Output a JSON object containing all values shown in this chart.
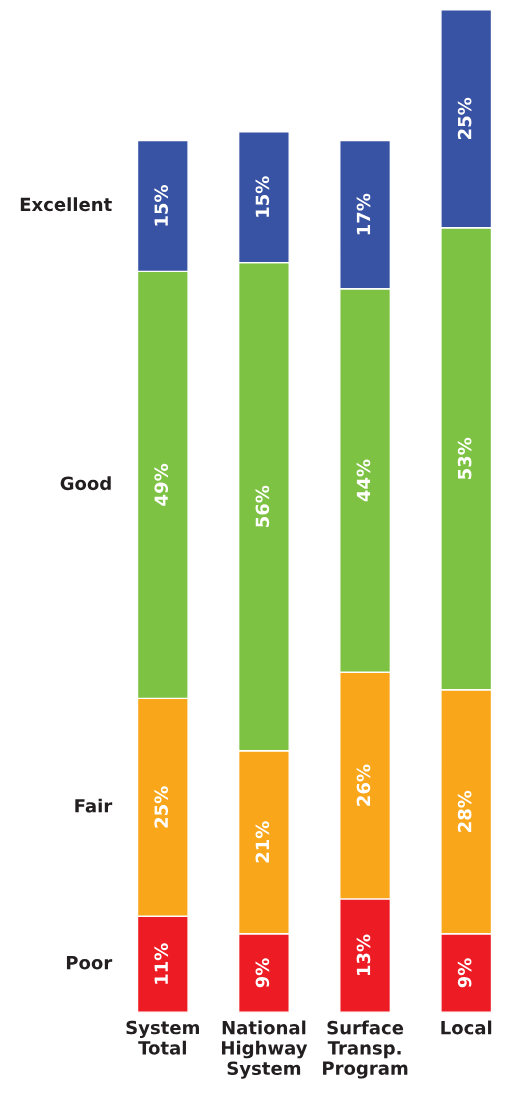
{
  "chart_data": {
    "type": "bar",
    "stacked": true,
    "tick_labels": "x",
    "legend": "left",
    "grid": false,
    "categories": [
      "System\nTotal",
      "National\nHighway\nSystem",
      "Surface\nTransp.\nProgram",
      "Local"
    ],
    "series": [
      {
        "name": "Poor",
        "color": "#ed1c24",
        "values": [
          11,
          9,
          13,
          9
        ],
        "value_labels": [
          "11%",
          "9%",
          "13%",
          "9%"
        ]
      },
      {
        "name": "Fair",
        "color": "#f9a61a",
        "values": [
          25,
          21,
          26,
          28
        ],
        "value_labels": [
          "25%",
          "21%",
          "26%",
          "28%"
        ]
      },
      {
        "name": "Good",
        "color": "#7dc242",
        "values": [
          49,
          56,
          44,
          53
        ],
        "value_labels": [
          "49%",
          "56%",
          "44%",
          "53%"
        ]
      },
      {
        "name": "Excellent",
        "color": "#3953a4",
        "values": [
          15,
          15,
          17,
          25
        ],
        "value_labels": [
          "15%",
          "15%",
          "17%",
          "25%"
        ]
      }
    ]
  }
}
